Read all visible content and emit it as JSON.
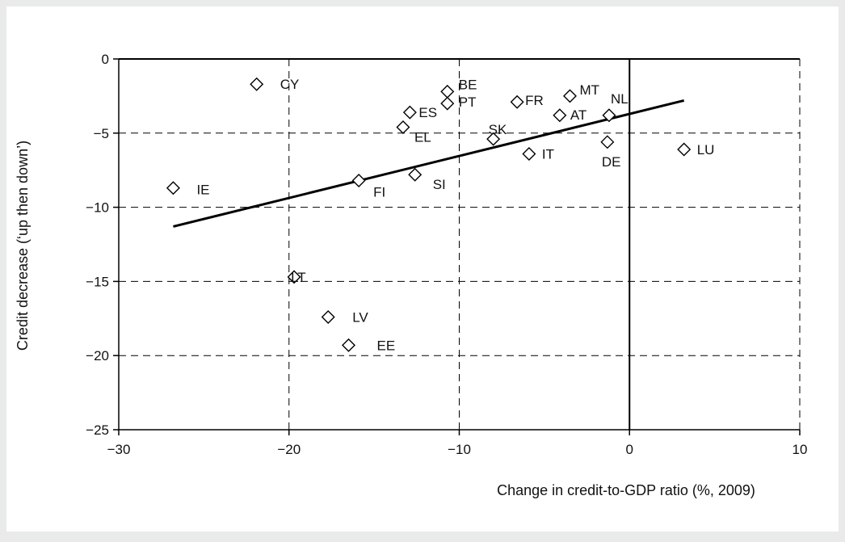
{
  "chart_data": {
    "type": "scatter",
    "title": "",
    "xlabel": "Change in credit-to-GDP ratio (%, 2009)",
    "ylabel": "Credit decrease (‘up then down’)",
    "xlim": [
      -30,
      10
    ],
    "ylim": [
      -25,
      0
    ],
    "xticks": [
      -30,
      -20,
      -10,
      0,
      10
    ],
    "yticks": [
      0,
      -5,
      -10,
      -15,
      -20,
      -25
    ],
    "grid": true,
    "grid_style": "dashed",
    "legend": "none",
    "colors": {
      "background": "#e9eaea",
      "plot_background": "#ffffff",
      "marker_fill": "#ffffff",
      "ink": "#000000"
    },
    "points": [
      {
        "label": "CY",
        "x": -21.9,
        "y": -1.7
      },
      {
        "label": "BE",
        "x": -10.7,
        "y": -2.2
      },
      {
        "label": "PT",
        "x": -10.7,
        "y": -3.0
      },
      {
        "label": "ES",
        "x": -12.9,
        "y": -3.6
      },
      {
        "label": "EL",
        "x": -13.3,
        "y": -4.6
      },
      {
        "label": "MT",
        "x": -3.5,
        "y": -2.5
      },
      {
        "label": "FR",
        "x": -6.6,
        "y": -2.9
      },
      {
        "label": "NL",
        "x": -1.2,
        "y": -3.8
      },
      {
        "label": "AT",
        "x": -4.1,
        "y": -3.8
      },
      {
        "label": "SK",
        "x": -8.0,
        "y": -5.4
      },
      {
        "label": "IT",
        "x": -5.9,
        "y": -6.4
      },
      {
        "label": "DE",
        "x": -1.3,
        "y": -5.6
      },
      {
        "label": "LU",
        "x": 3.2,
        "y": -6.1
      },
      {
        "label": "IE",
        "x": -26.8,
        "y": -8.7
      },
      {
        "label": "FI",
        "x": -15.9,
        "y": -8.2
      },
      {
        "label": "SI",
        "x": -12.6,
        "y": -7.8
      },
      {
        "label": "LT",
        "x": -19.7,
        "y": -14.7
      },
      {
        "label": "LV",
        "x": -17.7,
        "y": -17.4
      },
      {
        "label": "EE",
        "x": -16.5,
        "y": -19.3
      }
    ],
    "trendline": {
      "x": [
        -26.8,
        3.2
      ],
      "y": [
        -11.3,
        -2.8
      ]
    }
  }
}
